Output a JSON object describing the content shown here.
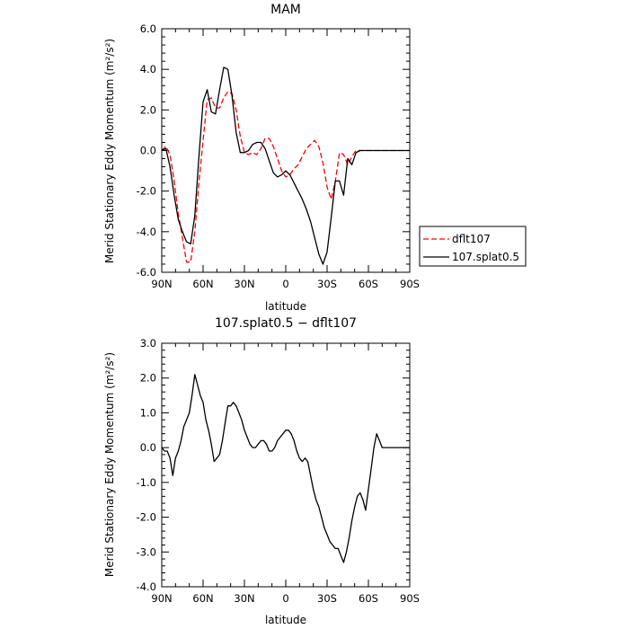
{
  "chart_data": [
    {
      "type": "line",
      "title": "MAM",
      "xlabel": "latitude",
      "ylabel": "Merid Stationary Eddy Momentum (m²/s²)",
      "xlim": [
        90,
        -90
      ],
      "ylim": [
        -6.0,
        6.0
      ],
      "xticks": [
        90,
        60,
        30,
        0,
        -30,
        -60,
        -90
      ],
      "xtick_labels": [
        "90N",
        "60N",
        "30N",
        "0",
        "30S",
        "60S",
        "90S"
      ],
      "yticks": [
        -6,
        -4,
        -2,
        0,
        2,
        4,
        6
      ],
      "ytick_labels": [
        "-6.0",
        "-4.0",
        "-2.0",
        "0.0",
        "2.0",
        "4.0",
        "6.0"
      ],
      "grid": false,
      "legend": "right-outside",
      "series": [
        {
          "name": "dflt107",
          "color": "#ff0000",
          "style": "dashed",
          "x": [
            90,
            87,
            84,
            81,
            78,
            75,
            72,
            69,
            66,
            63,
            60,
            57,
            54,
            51,
            48,
            45,
            42,
            39,
            36,
            33,
            30,
            27,
            24,
            21,
            18,
            15,
            12,
            9,
            6,
            3,
            0,
            -3,
            -6,
            -9,
            -12,
            -15,
            -18,
            -21,
            -24,
            -27,
            -30,
            -33,
            -36,
            -39,
            -42,
            -45,
            -48,
            -51,
            -54,
            -57,
            -60,
            -63,
            -66,
            -69,
            -72,
            -75,
            -78,
            -81,
            -84,
            -87,
            -90
          ],
          "y": [
            0.0,
            0.2,
            -0.2,
            -1.5,
            -3.1,
            -4.3,
            -5.5,
            -5.5,
            -4.0,
            -1.6,
            0.5,
            2.5,
            2.6,
            2.1,
            2.1,
            2.6,
            2.9,
            2.8,
            2.0,
            0.7,
            -0.1,
            -0.2,
            -0.1,
            -0.2,
            0.1,
            0.6,
            0.6,
            0.2,
            -0.4,
            -1.0,
            -1.3,
            -1.2,
            -0.9,
            -0.7,
            -0.3,
            0.1,
            0.3,
            0.5,
            0.2,
            -0.6,
            -1.8,
            -2.4,
            -1.5,
            -0.1,
            -0.2,
            -0.7,
            -0.3,
            0.0,
            0.0,
            0.0,
            0.0,
            0.0,
            0.0,
            0.0,
            0.0,
            0.0,
            0.0,
            0.0,
            0.0,
            0.0,
            0.0
          ]
        },
        {
          "name": "107.splat0.5",
          "color": "#000000",
          "style": "solid",
          "x": [
            90,
            87,
            84,
            81,
            78,
            75,
            72,
            69,
            66,
            63,
            60,
            57,
            54,
            51,
            48,
            45,
            42,
            39,
            36,
            33,
            30,
            27,
            24,
            21,
            18,
            15,
            12,
            9,
            6,
            3,
            0,
            -3,
            -6,
            -9,
            -12,
            -15,
            -18,
            -21,
            -24,
            -27,
            -30,
            -33,
            -36,
            -39,
            -42,
            -45,
            -48,
            -51,
            -54,
            -57,
            -60,
            -63,
            -66,
            -69,
            -72,
            -75,
            -78,
            -81,
            -84,
            -87,
            -90
          ],
          "y": [
            0.0,
            0.1,
            -0.8,
            -2.2,
            -3.4,
            -4.0,
            -4.5,
            -4.6,
            -3.2,
            -0.3,
            2.4,
            3.0,
            1.9,
            1.8,
            3.0,
            4.1,
            4.0,
            2.7,
            0.9,
            -0.1,
            -0.1,
            0.0,
            0.3,
            0.4,
            0.4,
            0.1,
            -0.5,
            -1.1,
            -1.3,
            -1.2,
            -1.0,
            -1.2,
            -1.6,
            -2.0,
            -2.4,
            -2.9,
            -3.5,
            -4.3,
            -5.1,
            -5.6,
            -5.0,
            -3.3,
            -1.5,
            -1.5,
            -2.2,
            -0.4,
            -0.7,
            -0.1,
            0.0,
            0.0,
            0.0,
            0.0,
            0.0,
            0.0,
            0.0,
            0.0,
            0.0,
            0.0,
            0.0,
            0.0,
            0.0
          ]
        }
      ]
    },
    {
      "type": "line",
      "title": "107.splat0.5 − dflt107",
      "xlabel": "latitude",
      "ylabel": "Merid Stationary Eddy Momentum (m²/s²)",
      "xlim": [
        90,
        -90
      ],
      "ylim": [
        -4.0,
        3.0
      ],
      "xticks": [
        90,
        60,
        30,
        0,
        -30,
        -60,
        -90
      ],
      "xtick_labels": [
        "90N",
        "60N",
        "30N",
        "0",
        "30S",
        "60S",
        "90S"
      ],
      "yticks": [
        -4,
        -3,
        -2,
        -1,
        0,
        1,
        2,
        3
      ],
      "ytick_labels": [
        "-4.0",
        "-3.0",
        "-2.0",
        "-1.0",
        "0.0",
        "1.0",
        "2.0",
        "3.0"
      ],
      "grid": false,
      "series": [
        {
          "color": "#000000",
          "style": "solid",
          "x": [
            90,
            88,
            86,
            84,
            82,
            80,
            78,
            76,
            74,
            72,
            70,
            68,
            66,
            64,
            62,
            60,
            58,
            56,
            54,
            52,
            50,
            48,
            46,
            44,
            42,
            40,
            38,
            36,
            34,
            32,
            30,
            28,
            26,
            24,
            22,
            20,
            18,
            16,
            14,
            12,
            10,
            8,
            6,
            4,
            2,
            0,
            -2,
            -4,
            -6,
            -8,
            -10,
            -12,
            -14,
            -16,
            -18,
            -20,
            -22,
            -24,
            -26,
            -28,
            -30,
            -32,
            -34,
            -36,
            -38,
            -40,
            -42,
            -44,
            -46,
            -48,
            -50,
            -52,
            -54,
            -56,
            -58,
            -60,
            -62,
            -64,
            -66,
            -68,
            -70,
            -72,
            -74,
            -76,
            -78,
            -80,
            -82,
            -84,
            -86,
            -88,
            -90
          ],
          "y": [
            0.0,
            -0.1,
            -0.1,
            -0.3,
            -0.8,
            -0.3,
            -0.1,
            0.2,
            0.6,
            0.8,
            1.0,
            1.5,
            2.1,
            1.8,
            1.5,
            1.3,
            0.8,
            0.5,
            0.1,
            -0.4,
            -0.3,
            -0.2,
            0.2,
            0.7,
            1.2,
            1.2,
            1.3,
            1.2,
            1.0,
            0.8,
            0.5,
            0.3,
            0.1,
            0.0,
            0.0,
            0.1,
            0.2,
            0.2,
            0.1,
            -0.1,
            -0.1,
            0.0,
            0.2,
            0.3,
            0.4,
            0.5,
            0.5,
            0.4,
            0.2,
            -0.1,
            -0.3,
            -0.4,
            -0.3,
            -0.4,
            -0.8,
            -1.2,
            -1.5,
            -1.7,
            -2.0,
            -2.3,
            -2.5,
            -2.7,
            -2.8,
            -2.9,
            -2.9,
            -3.1,
            -3.3,
            -3.0,
            -2.6,
            -2.1,
            -1.7,
            -1.4,
            -1.3,
            -1.5,
            -1.8,
            -1.2,
            -0.6,
            0.0,
            0.4,
            0.2,
            0.0,
            0.0,
            0.0,
            0.0,
            0.0,
            0.0,
            0.0,
            0.0,
            0.0,
            0.0,
            0.0
          ]
        }
      ]
    }
  ]
}
